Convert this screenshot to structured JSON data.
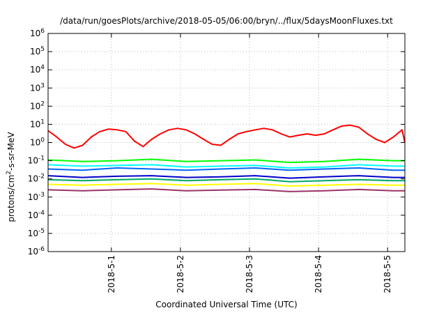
{
  "chart_data": {
    "type": "line",
    "title": "/data/run/goesPlots/archive/2018-05-05/06:00/bryn/../flux/5daysMoonFluxes.txt",
    "xlabel": "Coordinated Universal Time (UTC)",
    "ylabel": {
      "base": "protons/cm",
      "sup": "2",
      "rest": "-s-sr-MeV"
    },
    "y_scale": "log",
    "ylim": [
      1e-06,
      1000000.0
    ],
    "y_ticks": [
      {
        "base": "10",
        "exp": "-6",
        "value": 1e-06
      },
      {
        "base": "10",
        "exp": "-5",
        "value": 1e-05
      },
      {
        "base": "10",
        "exp": "-4",
        "value": 0.0001
      },
      {
        "base": "10",
        "exp": "-3",
        "value": 0.001
      },
      {
        "base": "10",
        "exp": "-2",
        "value": 0.01
      },
      {
        "base": "10",
        "exp": "-1",
        "value": 0.1
      },
      {
        "base": "10",
        "exp": "0",
        "value": 1
      },
      {
        "base": "10",
        "exp": "1",
        "value": 10
      },
      {
        "base": "10",
        "exp": "2",
        "value": 100
      },
      {
        "base": "10",
        "exp": "3",
        "value": 1000
      },
      {
        "base": "10",
        "exp": "4",
        "value": 10000
      },
      {
        "base": "10",
        "exp": "5",
        "value": 100000
      },
      {
        "base": "10",
        "exp": "6",
        "value": 1000000
      }
    ],
    "xlim": [
      "2018-04-30T02:00",
      "2018-05-05T06:00"
    ],
    "x_ticks": [
      {
        "label": "2018-5-1",
        "value": "2018-05-01T00:00"
      },
      {
        "label": "2018-5-2",
        "value": "2018-05-02T00:00"
      },
      {
        "label": "2018-5-3",
        "value": "2018-05-03T00:00"
      },
      {
        "label": "2018-5-4",
        "value": "2018-05-04T00:00"
      },
      {
        "label": "2018-5-5",
        "value": "2018-05-05T00:00"
      }
    ],
    "grid": true,
    "legend": "none",
    "series": [
      {
        "color": "#ff0000",
        "x": [
          "2018-04-30T02:00",
          "2018-04-30T05:00",
          "2018-04-30T08:00",
          "2018-04-30T11:00",
          "2018-04-30T14:00",
          "2018-04-30T17:00",
          "2018-04-30T20:00",
          "2018-04-30T23:00",
          "2018-05-01T02:00",
          "2018-05-01T05:00",
          "2018-05-01T08:00",
          "2018-05-01T11:00",
          "2018-05-01T14:00",
          "2018-05-01T17:00",
          "2018-05-01T20:00",
          "2018-05-01T23:00",
          "2018-05-02T02:00",
          "2018-05-02T05:00",
          "2018-05-02T08:00",
          "2018-05-02T11:00",
          "2018-05-02T14:00",
          "2018-05-02T17:00",
          "2018-05-02T20:00",
          "2018-05-02T23:00",
          "2018-05-03T02:00",
          "2018-05-03T05:00",
          "2018-05-03T08:00",
          "2018-05-03T11:00",
          "2018-05-03T14:00",
          "2018-05-03T17:00",
          "2018-05-03T20:00",
          "2018-05-03T23:00",
          "2018-05-04T02:00",
          "2018-05-04T05:00",
          "2018-05-04T08:00",
          "2018-05-04T11:00",
          "2018-05-04T14:00",
          "2018-05-04T17:00",
          "2018-05-04T20:00",
          "2018-05-04T23:00",
          "2018-05-05T02:00",
          "2018-05-05T05:00",
          "2018-05-05T06:00"
        ],
        "y": [
          4.5,
          2,
          0.8,
          0.5,
          0.7,
          2,
          4,
          5.5,
          5,
          4,
          1.2,
          0.6,
          1.5,
          3,
          5,
          6,
          5,
          3,
          1.5,
          0.8,
          0.7,
          1.5,
          3,
          4,
          5,
          6,
          5,
          3,
          2,
          2.5,
          3,
          2.5,
          3,
          5,
          8,
          9,
          7,
          3,
          1.5,
          1,
          2,
          5,
          1
        ]
      },
      {
        "color": "#00ff00",
        "x": [
          "2018-04-30T02:00",
          "2018-04-30T14:00",
          "2018-05-01T02:00",
          "2018-05-01T14:00",
          "2018-05-02T02:00",
          "2018-05-02T14:00",
          "2018-05-03T02:00",
          "2018-05-03T14:00",
          "2018-05-04T02:00",
          "2018-05-04T14:00",
          "2018-05-05T02:00",
          "2018-05-05T06:00"
        ],
        "y": [
          0.11,
          0.09,
          0.1,
          0.12,
          0.09,
          0.1,
          0.11,
          0.08,
          0.09,
          0.12,
          0.1,
          0.1
        ]
      },
      {
        "color": "#00ffff",
        "x": [
          "2018-04-30T02:00",
          "2018-04-30T14:00",
          "2018-05-01T02:00",
          "2018-05-01T14:00",
          "2018-05-02T02:00",
          "2018-05-02T14:00",
          "2018-05-03T02:00",
          "2018-05-03T14:00",
          "2018-05-04T02:00",
          "2018-05-04T14:00",
          "2018-05-05T02:00",
          "2018-05-05T06:00"
        ],
        "y": [
          0.06,
          0.05,
          0.055,
          0.06,
          0.045,
          0.05,
          0.055,
          0.04,
          0.045,
          0.06,
          0.05,
          0.05
        ]
      },
      {
        "color": "#0066ff",
        "x": [
          "2018-04-30T02:00",
          "2018-04-30T14:00",
          "2018-05-01T02:00",
          "2018-05-01T14:00",
          "2018-05-02T02:00",
          "2018-05-02T14:00",
          "2018-05-03T02:00",
          "2018-05-03T14:00",
          "2018-05-04T02:00",
          "2018-05-04T14:00",
          "2018-05-05T02:00",
          "2018-05-05T06:00"
        ],
        "y": [
          0.035,
          0.03,
          0.04,
          0.035,
          0.03,
          0.035,
          0.04,
          0.03,
          0.035,
          0.04,
          0.03,
          0.03
        ]
      },
      {
        "color": "#0000cc",
        "x": [
          "2018-04-30T02:00",
          "2018-04-30T14:00",
          "2018-05-01T02:00",
          "2018-05-01T14:00",
          "2018-05-02T02:00",
          "2018-05-02T14:00",
          "2018-05-03T02:00",
          "2018-05-03T14:00",
          "2018-05-04T02:00",
          "2018-05-04T14:00",
          "2018-05-05T02:00",
          "2018-05-05T06:00"
        ],
        "y": [
          0.015,
          0.012,
          0.014,
          0.015,
          0.012,
          0.013,
          0.015,
          0.011,
          0.013,
          0.015,
          0.012,
          0.012
        ]
      },
      {
        "color": "#00aa66",
        "x": [
          "2018-04-30T02:00",
          "2018-04-30T14:00",
          "2018-05-01T02:00",
          "2018-05-01T14:00",
          "2018-05-02T02:00",
          "2018-05-02T14:00",
          "2018-05-03T02:00",
          "2018-05-03T14:00",
          "2018-05-04T02:00",
          "2018-05-04T14:00",
          "2018-05-05T02:00",
          "2018-05-05T06:00"
        ],
        "y": [
          0.009,
          0.008,
          0.009,
          0.01,
          0.008,
          0.009,
          0.01,
          0.007,
          0.008,
          0.009,
          0.008,
          0.008
        ]
      },
      {
        "color": "#ffff00",
        "x": [
          "2018-04-30T02:00",
          "2018-04-30T14:00",
          "2018-05-01T02:00",
          "2018-05-01T14:00",
          "2018-05-02T02:00",
          "2018-05-02T14:00",
          "2018-05-03T02:00",
          "2018-05-03T14:00",
          "2018-05-04T02:00",
          "2018-05-04T14:00",
          "2018-05-05T02:00",
          "2018-05-05T06:00"
        ],
        "y": [
          0.005,
          0.0045,
          0.005,
          0.0055,
          0.0045,
          0.005,
          0.0055,
          0.004,
          0.0045,
          0.005,
          0.0045,
          0.0045
        ]
      },
      {
        "color": "#993366",
        "x": [
          "2018-04-30T02:00",
          "2018-04-30T14:00",
          "2018-05-01T02:00",
          "2018-05-01T14:00",
          "2018-05-02T02:00",
          "2018-05-02T14:00",
          "2018-05-03T02:00",
          "2018-05-03T14:00",
          "2018-05-04T02:00",
          "2018-05-04T14:00",
          "2018-05-05T02:00",
          "2018-05-05T06:00"
        ],
        "y": [
          0.0025,
          0.0022,
          0.0025,
          0.0028,
          0.0022,
          0.0024,
          0.0026,
          0.002,
          0.0022,
          0.0026,
          0.0022,
          0.0022
        ]
      }
    ]
  }
}
